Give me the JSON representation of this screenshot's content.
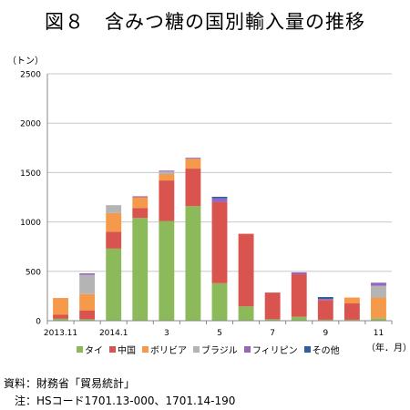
{
  "title": "図８　含みつ糖の国別輸入量の推移",
  "notes": {
    "source": "資料：財務省「貿易統計」",
    "note": "　注：HSコード1701.13-000、1701.14-190"
  },
  "chart_data": {
    "type": "bar",
    "stacked": true,
    "title": "図８　含みつ糖の国別輸入量の推移",
    "ylabel": "（トン）",
    "xlabel": "（年．月）",
    "ylim": [
      0,
      2500
    ],
    "yticks": [
      0,
      500,
      1000,
      1500,
      2000,
      2500
    ],
    "grid": true,
    "legend_position": "bottom",
    "categories": [
      "2013.11",
      "12",
      "2014.1",
      "2",
      "3",
      "4",
      "5",
      "6",
      "7",
      "8",
      "9",
      "10",
      "11"
    ],
    "x_tick_labels": [
      "2013.11",
      "",
      "2014.1",
      "",
      "3",
      "",
      "5",
      "",
      "7",
      "",
      "9",
      "",
      "11"
    ],
    "series": [
      {
        "name": "タイ",
        "color": "#8cb95a",
        "values": [
          20,
          15,
          730,
          1040,
          1010,
          1160,
          380,
          145,
          15,
          40,
          10,
          10,
          25
        ]
      },
      {
        "name": "中国",
        "color": "#d9534f",
        "values": [
          40,
          90,
          170,
          100,
          410,
          380,
          820,
          735,
          270,
          430,
          200,
          165,
          0
        ]
      },
      {
        "name": "ボリビア",
        "color": "#f59a4a",
        "values": [
          170,
          165,
          190,
          110,
          65,
          100,
          0,
          0,
          0,
          0,
          0,
          60,
          210
        ]
      },
      {
        "name": "ブラジル",
        "color": "#b4b4b4",
        "values": [
          0,
          195,
          80,
          0,
          25,
          0,
          0,
          0,
          0,
          0,
          0,
          0,
          120
        ]
      },
      {
        "name": "フィリピン",
        "color": "#9467bd",
        "values": [
          0,
          15,
          0,
          10,
          10,
          10,
          40,
          0,
          0,
          20,
          10,
          0,
          30
        ]
      },
      {
        "name": "その他",
        "color": "#2f5f9f",
        "values": [
          0,
          0,
          0,
          0,
          0,
          0,
          15,
          0,
          0,
          0,
          20,
          0,
          0
        ]
      }
    ]
  }
}
